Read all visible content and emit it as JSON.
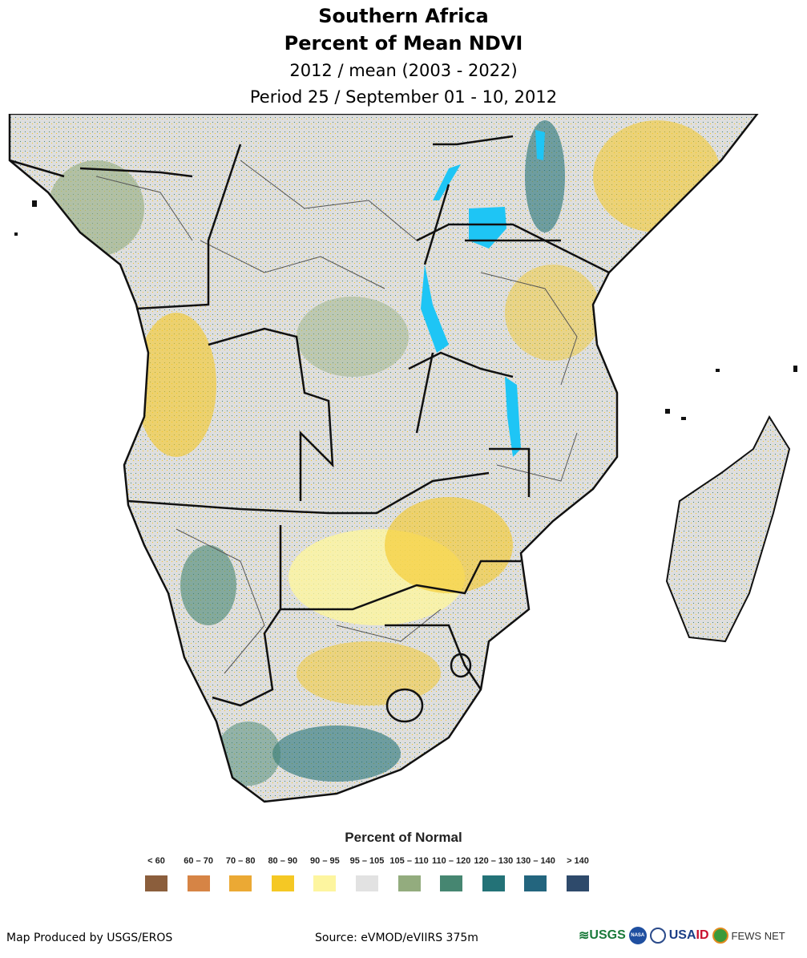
{
  "title": {
    "line1": "Southern Africa",
    "line2": "Percent of Mean NDVI",
    "line3": "2012 / mean (2003 - 2022)",
    "line4": "Period 25 / September 01 - 10, 2012"
  },
  "legend": {
    "title": "Percent of Normal",
    "items": [
      {
        "label": "< 60",
        "color": "#8b5e3c"
      },
      {
        "label": "60 – 70",
        "color": "#d68445"
      },
      {
        "label": "70 – 80",
        "color": "#eba934"
      },
      {
        "label": "80 – 90",
        "color": "#f5c824"
      },
      {
        "label": "90 – 95",
        "color": "#fdf59f"
      },
      {
        "label": "95 – 105",
        "color": "#e2e2e2"
      },
      {
        "label": "105 – 110",
        "color": "#93ac7e"
      },
      {
        "label": "110 – 120",
        "color": "#468671"
      },
      {
        "label": "120 – 130",
        "color": "#237277"
      },
      {
        "label": "130 – 140",
        "color": "#23657e"
      },
      {
        "label": "> 140",
        "color": "#2e4a6b"
      }
    ]
  },
  "footer": {
    "credit": "Map Produced by USGS/EROS",
    "source": "Source: eVMOD/eVIIRS 375m",
    "logos": {
      "usgs": "USGS",
      "nasa": "NASA",
      "usaid": "USAID",
      "fews": "FEWS NET"
    }
  }
}
